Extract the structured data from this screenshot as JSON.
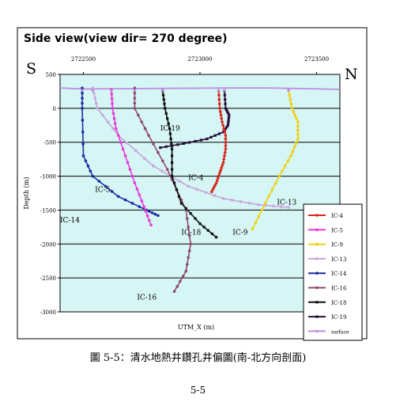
{
  "chart_data": {
    "type": "line",
    "title": "Side view(view dir= 270 degree)",
    "xlabel": "UTM_X (m)",
    "ylabel": "Depth (m)",
    "direction_left": "S",
    "direction_right": "N",
    "xlim": [
      2722400,
      2723600
    ],
    "ylim": [
      -3000,
      500
    ],
    "x_ticks": [
      "2722500",
      "2723000",
      "2723500"
    ],
    "x_tick_values": [
      2722500,
      2723000,
      2723500
    ],
    "y_ticks": [
      "500",
      "0",
      "-500",
      "-1000",
      "-1500",
      "-2000",
      "-2500",
      "-3000"
    ],
    "y_tick_values": [
      500,
      0,
      -500,
      -1000,
      -1500,
      -2000,
      -2500,
      -3000
    ],
    "grid": "horizontal",
    "legend_position": "bottom-right",
    "series": [
      {
        "name": "IC-4",
        "color": "#d42a1e",
        "marker": "circle",
        "x": [
          2723080,
          2723085,
          2723095,
          2723110,
          2723110,
          2723100,
          2723085,
          2723070,
          2723050
        ],
        "y": [
          260,
          0,
          -200,
          -400,
          -600,
          -800,
          -950,
          -1100,
          -1230
        ]
      },
      {
        "name": "IC-5",
        "color": "#e83ad8",
        "marker": "circle",
        "x": [
          2722620,
          2722625,
          2722640,
          2722680,
          2722720,
          2722760,
          2722790
        ],
        "y": [
          280,
          0,
          -300,
          -700,
          -1100,
          -1450,
          -1720
        ]
      },
      {
        "name": "IC-9",
        "color": "#f0d010",
        "marker": "square",
        "x": [
          2723380,
          2723395,
          2723420,
          2723420,
          2723390,
          2723340,
          2723280,
          2723225
        ],
        "y": [
          260,
          0,
          -200,
          -450,
          -700,
          -1000,
          -1400,
          -1780
        ]
      },
      {
        "name": "IC-13",
        "color": "#c8a6dc",
        "marker": "circle",
        "x": [
          2722540,
          2722560,
          2722650,
          2722800,
          2722950,
          2723100,
          2723250,
          2723380
        ],
        "y": [
          300,
          0,
          -400,
          -850,
          -1150,
          -1330,
          -1420,
          -1460
        ]
      },
      {
        "name": "IC-14",
        "color": "#1b2ea0",
        "marker": "circle",
        "x": [
          2722495,
          2722495,
          2722500,
          2722540,
          2722650,
          2722770,
          2722820
        ],
        "y": [
          300,
          0,
          -700,
          -1000,
          -1300,
          -1500,
          -1580
        ]
      },
      {
        "name": "IC-16",
        "color": "#8e4a6e",
        "marker": "circle",
        "x": [
          2722720,
          2722720,
          2722780,
          2722860,
          2722940,
          2722960,
          2722940,
          2722890
        ],
        "y": [
          300,
          0,
          -400,
          -900,
          -1500,
          -2000,
          -2400,
          -2700
        ]
      },
      {
        "name": "IC-18",
        "color": "#111111",
        "marker": "square",
        "x": [
          2722840,
          2722850,
          2722870,
          2722880,
          2722880,
          2722920,
          2723000,
          2723070
        ],
        "y": [
          260,
          0,
          -300,
          -600,
          -1000,
          -1400,
          -1700,
          -1900
        ]
      },
      {
        "name": "IC-19",
        "color": "#2a0c38",
        "marker": "square",
        "x": [
          2723105,
          2723110,
          2723125,
          2723120,
          2723100,
          2723030,
          2722930,
          2722830
        ],
        "y": [
          260,
          0,
          -100,
          -250,
          -350,
          -450,
          -520,
          -580
        ]
      },
      {
        "name": "surface",
        "color": "#bb8fdc",
        "marker": "circle",
        "x": [
          2722400,
          2722500,
          2722700,
          2722900,
          2723100,
          2723300,
          2723450,
          2723600
        ],
        "y": [
          300,
          285,
          290,
          295,
          300,
          300,
          290,
          280
        ]
      }
    ],
    "annotations": [
      {
        "text": "IC-19",
        "x": 2722830,
        "y": -330
      },
      {
        "text": "IC-4",
        "x": 2722950,
        "y": -1060
      },
      {
        "text": "IC-5",
        "x": 2722550,
        "y": -1230
      },
      {
        "text": "IC-13",
        "x": 2723330,
        "y": -1420
      },
      {
        "text": "IC-14",
        "x": 2722400,
        "y": -1680
      },
      {
        "text": "IC-18",
        "x": 2722920,
        "y": -1860
      },
      {
        "text": "IC-9",
        "x": 2723140,
        "y": -1860
      },
      {
        "text": "IC-16",
        "x": 2722730,
        "y": -2820
      }
    ]
  },
  "caption": "圖 5-5：清水地熱井鑽孔井偏圖(南-北方向剖面)",
  "page_number": "5-5"
}
